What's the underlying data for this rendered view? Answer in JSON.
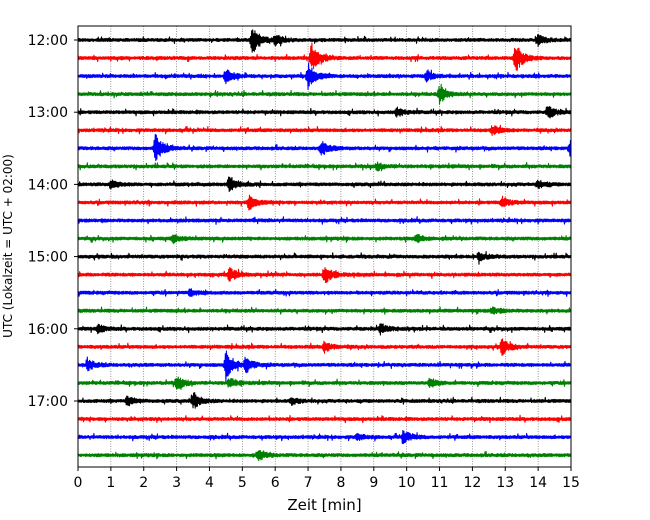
{
  "chart_data": {
    "type": "line",
    "title": "",
    "xlabel": "Zeit  [min]",
    "ylabel": "UTC (Lokalzeit = UTC + 02:00)",
    "xlim": [
      0,
      15
    ],
    "xticks": [
      0,
      1,
      2,
      3,
      4,
      5,
      6,
      7,
      8,
      9,
      10,
      11,
      12,
      13,
      14,
      15
    ],
    "xtick_labels": [
      "0",
      "1",
      "2",
      "3",
      "4",
      "5",
      "6",
      "7",
      "8",
      "9",
      "10",
      "11",
      "12",
      "13",
      "14",
      "15"
    ],
    "ytick_labels": [
      "12:00",
      "13:00",
      "14:00",
      "15:00",
      "16:00",
      "17:00"
    ],
    "grid": "vertical-dotted",
    "color_cycle": [
      "#000000",
      "#ff0000",
      "#0000ff",
      "#008000"
    ],
    "traces": [
      {
        "start": "12:00",
        "color": "black",
        "events": [
          {
            "t": 5.3,
            "amp": 1.0
          },
          {
            "t": 6.0,
            "amp": 0.35
          },
          {
            "t": 14.0,
            "amp": 0.35
          }
        ]
      },
      {
        "start": "12:15",
        "color": "red",
        "events": [
          {
            "t": 7.1,
            "amp": 1.0
          },
          {
            "t": 13.3,
            "amp": 1.0
          }
        ]
      },
      {
        "start": "12:30",
        "color": "blue",
        "events": [
          {
            "t": 4.5,
            "amp": 0.5
          },
          {
            "t": 7.0,
            "amp": 0.85
          },
          {
            "t": 10.6,
            "amp": 0.3
          }
        ]
      },
      {
        "start": "12:45",
        "color": "green",
        "events": [
          {
            "t": 11.0,
            "amp": 0.6
          }
        ]
      },
      {
        "start": "13:00",
        "color": "black",
        "events": [
          {
            "t": 14.3,
            "amp": 0.4
          },
          {
            "t": 9.7,
            "amp": 0.3
          }
        ]
      },
      {
        "start": "13:15",
        "color": "red",
        "events": [
          {
            "t": 12.6,
            "amp": 0.3
          }
        ]
      },
      {
        "start": "13:30",
        "color": "blue",
        "events": [
          {
            "t": 2.35,
            "amp": 1.0
          },
          {
            "t": 7.4,
            "amp": 0.5
          },
          {
            "t": 15.0,
            "amp": 1.0
          }
        ]
      },
      {
        "start": "13:45",
        "color": "green",
        "events": [
          {
            "t": 9.1,
            "amp": 0.25
          }
        ]
      },
      {
        "start": "14:00",
        "color": "black",
        "events": [
          {
            "t": 4.6,
            "amp": 0.55
          },
          {
            "t": 1.0,
            "amp": 0.3
          },
          {
            "t": 14.0,
            "amp": 0.25
          }
        ]
      },
      {
        "start": "14:15",
        "color": "red",
        "events": [
          {
            "t": 5.2,
            "amp": 0.45
          },
          {
            "t": 12.9,
            "amp": 0.35
          }
        ]
      },
      {
        "start": "14:30",
        "color": "blue",
        "events": []
      },
      {
        "start": "14:45",
        "color": "green",
        "events": [
          {
            "t": 2.9,
            "amp": 0.25
          },
          {
            "t": 10.3,
            "amp": 0.25
          }
        ]
      },
      {
        "start": "15:00",
        "color": "black",
        "events": [
          {
            "t": 12.2,
            "amp": 0.3
          }
        ]
      },
      {
        "start": "15:15",
        "color": "red",
        "events": [
          {
            "t": 4.6,
            "amp": 0.45
          },
          {
            "t": 7.5,
            "amp": 0.6
          }
        ]
      },
      {
        "start": "15:30",
        "color": "blue",
        "events": [
          {
            "t": 3.4,
            "amp": 0.2
          }
        ]
      },
      {
        "start": "15:45",
        "color": "green",
        "events": [
          {
            "t": 12.6,
            "amp": 0.2
          }
        ]
      },
      {
        "start": "16:00",
        "color": "black",
        "events": [
          {
            "t": 9.2,
            "amp": 0.35
          },
          {
            "t": 0.6,
            "amp": 0.25
          }
        ]
      },
      {
        "start": "16:15",
        "color": "red",
        "events": [
          {
            "t": 7.5,
            "amp": 0.35
          },
          {
            "t": 12.9,
            "amp": 0.55
          }
        ]
      },
      {
        "start": "16:30",
        "color": "blue",
        "events": [
          {
            "t": 4.5,
            "amp": 1.0
          },
          {
            "t": 5.1,
            "amp": 0.5
          },
          {
            "t": 0.3,
            "amp": 0.35
          }
        ]
      },
      {
        "start": "16:45",
        "color": "green",
        "events": [
          {
            "t": 3.0,
            "amp": 0.45
          },
          {
            "t": 4.6,
            "amp": 0.3
          },
          {
            "t": 10.7,
            "amp": 0.3
          }
        ]
      },
      {
        "start": "17:00",
        "color": "black",
        "events": [
          {
            "t": 3.5,
            "amp": 0.55
          },
          {
            "t": 1.5,
            "amp": 0.3
          },
          {
            "t": 6.5,
            "amp": 0.2
          }
        ]
      },
      {
        "start": "17:15",
        "color": "red",
        "events": []
      },
      {
        "start": "17:30",
        "color": "blue",
        "events": [
          {
            "t": 9.9,
            "amp": 0.45
          },
          {
            "t": 8.5,
            "amp": 0.2
          }
        ]
      },
      {
        "start": "17:45",
        "color": "green",
        "events": [
          {
            "t": 5.5,
            "amp": 0.3
          }
        ]
      }
    ]
  }
}
